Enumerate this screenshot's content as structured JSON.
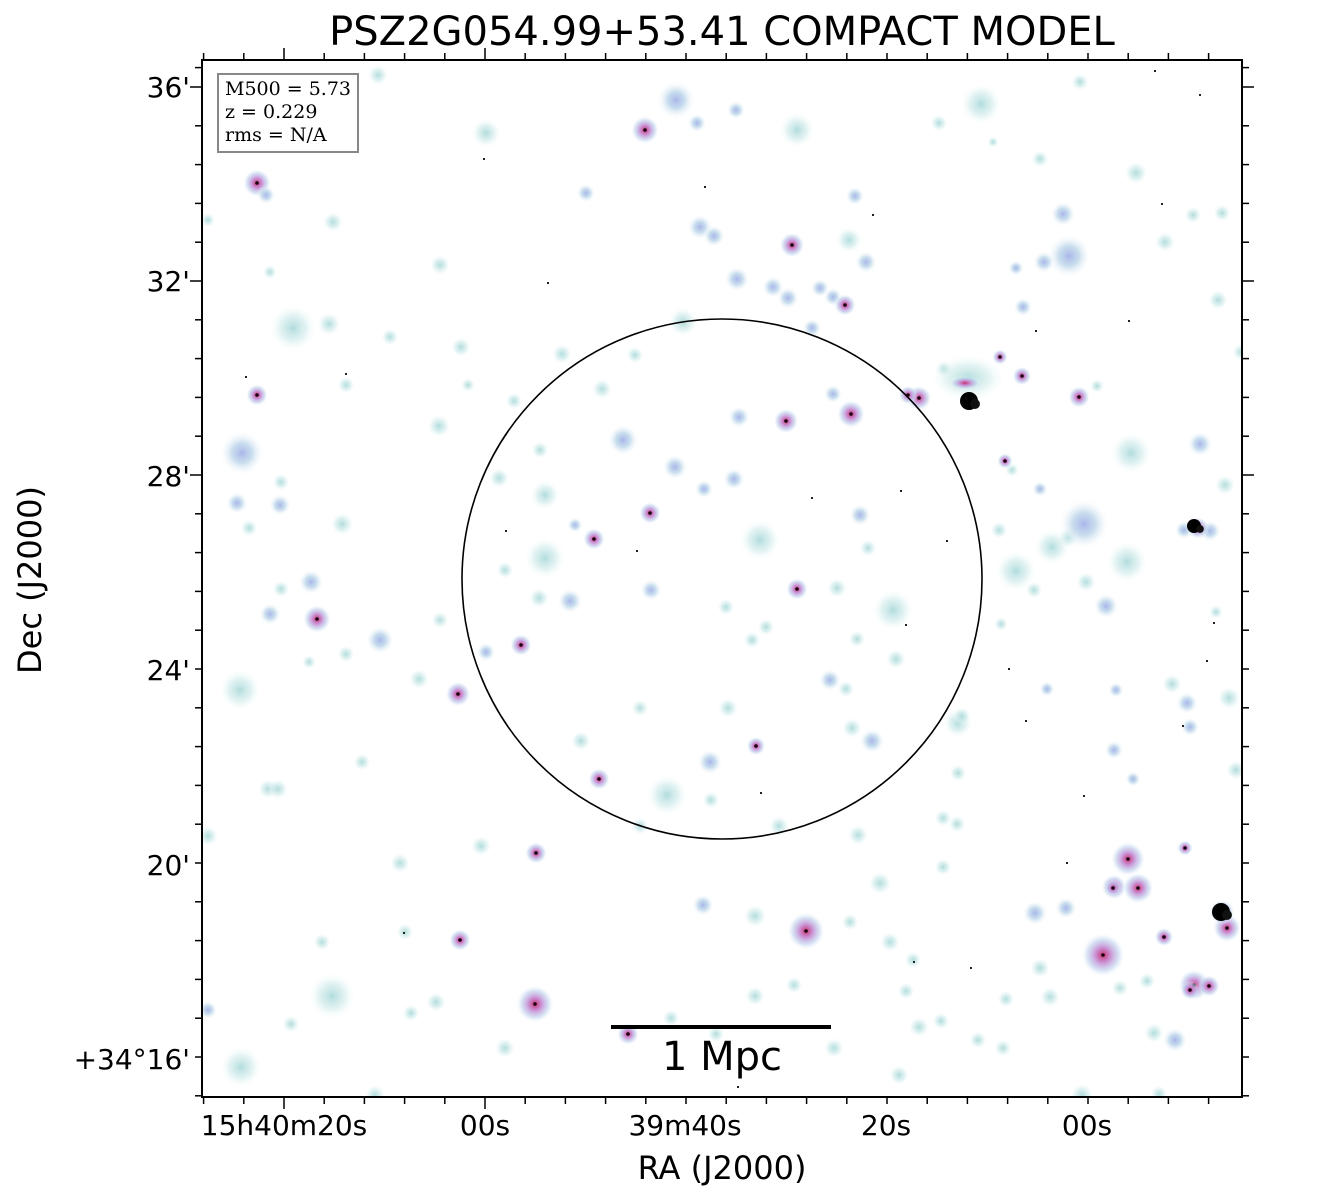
{
  "title": "PSZ2G054.99+53.41 COMPACT MODEL",
  "axes": {
    "xlabel": "RA (J2000)",
    "ylabel": "Dec (J2000)",
    "x_ticks": [
      "15h40m20s",
      "00s",
      "39m40s",
      "20s",
      "00s"
    ],
    "y_ticks": [
      "36'",
      "32'",
      "28'",
      "24'",
      "20'",
      "+34°16'"
    ]
  },
  "info": {
    "m500": "M500 = 5.73",
    "z": "z = 0.229",
    "rms": "rms = N/A"
  },
  "scalebar": {
    "label": "1 Mpc"
  },
  "colors": {
    "source_halo": "#bfe3e3",
    "source_core": "#b0bde8",
    "bright_core": "#d0407a",
    "axes": "#000000"
  }
}
